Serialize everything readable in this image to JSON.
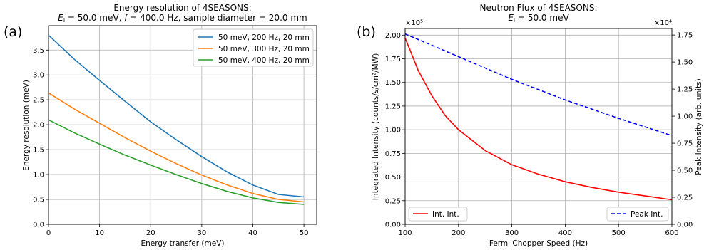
{
  "panel_labels": [
    "(a)",
    "(b)"
  ],
  "chart_data": [
    {
      "type": "line",
      "panel": "(a)",
      "title_line1": "Energy resolution of 4SEASONS:",
      "title_line2": "E_i = 50.0 meV, f = 400.0 Hz, sample diameter = 20.0 mm",
      "title_rich": {
        "e": "E",
        "sub": "i",
        "mid": " = 50.0 meV, ",
        "f": "f",
        "rest": " = 400.0 Hz, sample diameter = 20.0 mm"
      },
      "xlabel": "Energy transfer (meV)",
      "ylabel": "Energy resolution (meV)",
      "xlim": [
        0,
        52.5
      ],
      "ylim": [
        0,
        3.99
      ],
      "xticks": [
        0,
        10,
        20,
        30,
        40,
        50
      ],
      "yticks": [
        0.0,
        0.5,
        1.0,
        1.5,
        2.0,
        2.5,
        3.0,
        3.5
      ],
      "ytick_labels": [
        "0.0",
        "0.5",
        "1.0",
        "1.5",
        "2.0",
        "2.5",
        "3.0",
        "3.5"
      ],
      "grid": true,
      "legend_position": "top-right",
      "series": [
        {
          "name": "50 meV, 200 Hz, 20 mm",
          "color": "#1f77b4",
          "x": [
            0,
            5,
            10,
            15,
            20,
            25,
            30,
            35,
            40,
            45,
            50
          ],
          "y": [
            3.8,
            3.32,
            2.89,
            2.47,
            2.06,
            1.7,
            1.36,
            1.05,
            0.79,
            0.6,
            0.55
          ]
        },
        {
          "name": "50 meV, 300 Hz, 20 mm",
          "color": "#ff7f0e",
          "x": [
            0,
            5,
            10,
            15,
            20,
            25,
            30,
            35,
            40,
            45,
            50
          ],
          "y": [
            2.64,
            2.32,
            2.03,
            1.74,
            1.47,
            1.22,
            0.99,
            0.79,
            0.62,
            0.5,
            0.45
          ]
        },
        {
          "name": "50 meV, 400 Hz, 20 mm",
          "color": "#2ca02c",
          "x": [
            0,
            5,
            10,
            15,
            20,
            25,
            30,
            35,
            40,
            45,
            50
          ],
          "y": [
            2.1,
            1.84,
            1.61,
            1.39,
            1.19,
            1.0,
            0.82,
            0.66,
            0.53,
            0.44,
            0.4
          ]
        }
      ]
    },
    {
      "type": "line",
      "panel": "(b)",
      "title_line1": "Neutron Flux of 4SEASONS:",
      "title_rich": {
        "e": "E",
        "sub": "i",
        "rest": " = 50.0 meV"
      },
      "xlabel": "Fermi Chopper Speed (Hz)",
      "ylabel_left": "Integrated Intensity (counts/s/cm²/MW)",
      "ylabel_right": "Peak Intensity (arb. units)",
      "xlim": [
        100,
        600
      ],
      "ylim_left": [
        0,
        2.07
      ],
      "ylim_right": [
        0,
        1.81
      ],
      "xticks": [
        100,
        200,
        300,
        400,
        500,
        600
      ],
      "yticks_left": [
        0.0,
        0.25,
        0.5,
        0.75,
        1.0,
        1.25,
        1.5,
        1.75,
        2.0
      ],
      "ytick_labels_left": [
        "0.00",
        "0.25",
        "0.50",
        "0.75",
        "1.00",
        "1.25",
        "1.50",
        "1.75",
        "2.00"
      ],
      "yticks_right": [
        0.0,
        0.25,
        0.5,
        0.75,
        1.0,
        1.25,
        1.5,
        1.75
      ],
      "ytick_labels_right": [
        "0.00",
        "0.25",
        "0.50",
        "0.75",
        "1.00",
        "1.25",
        "1.50",
        "1.75"
      ],
      "offset_left": "×10⁵",
      "offset_right": "×10⁴",
      "grid": true,
      "series": [
        {
          "name": "Int. Int.",
          "axis": "left",
          "color": "#ff0000",
          "style": "solid",
          "legend_position": "bottom-left",
          "x": [
            100,
            125,
            150,
            175,
            200,
            250,
            300,
            350,
            400,
            450,
            500,
            550,
            600
          ],
          "y": [
            1.97,
            1.62,
            1.36,
            1.15,
            1.0,
            0.78,
            0.63,
            0.53,
            0.45,
            0.39,
            0.34,
            0.3,
            0.26
          ]
        },
        {
          "name": "Peak Int.",
          "axis": "right",
          "color": "#0000ff",
          "style": "dashed",
          "legend_position": "bottom-right",
          "x": [
            100,
            200,
            300,
            400,
            500,
            600
          ],
          "y": [
            1.76,
            1.55,
            1.34,
            1.15,
            0.98,
            0.82
          ]
        }
      ]
    }
  ]
}
